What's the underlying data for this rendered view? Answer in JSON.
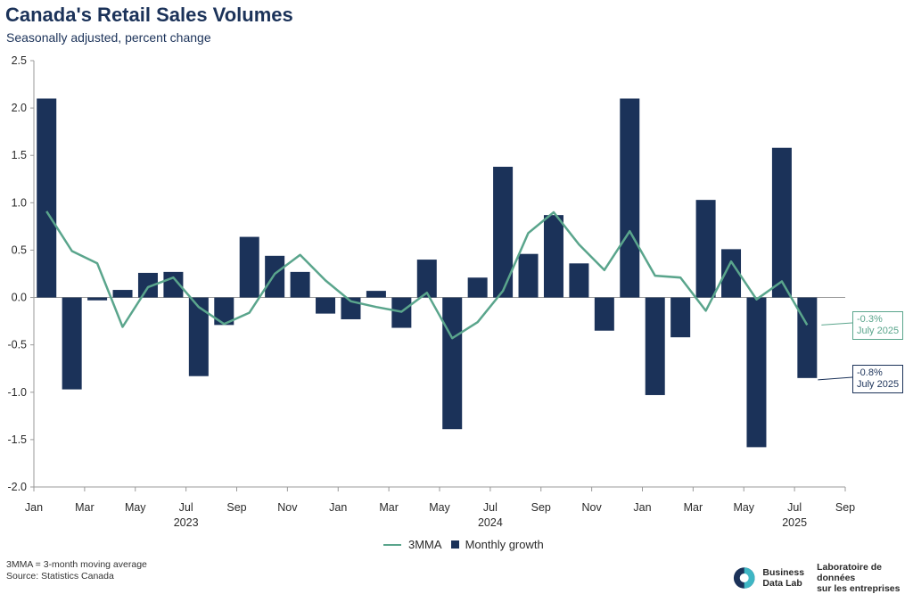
{
  "header": {
    "title": "Canada's Retail Sales Volumes",
    "subtitle": "Seasonally adjusted, percent change"
  },
  "chart_data": {
    "type": "bar",
    "title": "Canada's Retail Sales Volumes",
    "subtitle": "Seasonally adjusted, percent change",
    "x": [
      "2023-01",
      "2023-02",
      "2023-03",
      "2023-04",
      "2023-05",
      "2023-06",
      "2023-07",
      "2023-08",
      "2023-09",
      "2023-10",
      "2023-11",
      "2023-12",
      "2024-01",
      "2024-02",
      "2024-03",
      "2024-04",
      "2024-05",
      "2024-06",
      "2024-07",
      "2024-08",
      "2024-09",
      "2024-10",
      "2024-11",
      "2024-12",
      "2025-01",
      "2025-02",
      "2025-03",
      "2025-04",
      "2025-05",
      "2025-06",
      "2025-07"
    ],
    "series": [
      {
        "name": "Monthly growth",
        "type": "bar",
        "color": "#1b3259",
        "values": [
          2.1,
          -0.97,
          -0.03,
          0.08,
          0.26,
          0.27,
          -0.83,
          -0.29,
          0.64,
          0.44,
          0.27,
          -0.17,
          -0.23,
          0.07,
          -0.32,
          0.4,
          -1.39,
          0.21,
          1.38,
          0.46,
          0.87,
          0.36,
          -0.35,
          2.1,
          -1.03,
          -0.42,
          1.03,
          0.51,
          -1.58,
          1.58,
          -0.85
        ]
      },
      {
        "name": "3MMA",
        "type": "line",
        "color": "#5aa58c",
        "values": [
          0.91,
          0.49,
          0.36,
          -0.31,
          0.11,
          0.21,
          -0.1,
          -0.28,
          -0.16,
          0.25,
          0.45,
          0.18,
          -0.04,
          -0.1,
          -0.15,
          0.05,
          -0.43,
          -0.26,
          0.07,
          0.68,
          0.9,
          0.56,
          0.29,
          0.7,
          0.23,
          0.21,
          -0.14,
          0.38,
          -0.02,
          0.17,
          -0.29
        ]
      }
    ],
    "yticks": [
      "2.5",
      "2.0",
      "1.5",
      "1.0",
      "0.5",
      "0.0",
      "-0.5",
      "-1.0",
      "-1.5",
      "-2.0"
    ],
    "ylim": [
      -2.0,
      2.5
    ],
    "xtick_labels": [
      "Jan",
      "Mar",
      "May",
      "Jul",
      "Sep",
      "Nov",
      "Jan",
      "Mar",
      "May",
      "Jul",
      "Sep",
      "Nov",
      "Jan",
      "Mar",
      "May",
      "Jul",
      "Sep"
    ],
    "year_labels": [
      "2023",
      "2024",
      "2025"
    ],
    "annotations": [
      {
        "value": "-0.3%",
        "date": "July 2025",
        "series": "3MMA"
      },
      {
        "value": "-0.8%",
        "date": "July 2025",
        "series": "Monthly growth"
      }
    ],
    "legend": {
      "placement": "bottom-center",
      "items": [
        "3MMA",
        "Monthly growth"
      ]
    }
  },
  "footer": {
    "note": "3MMA = 3-month moving average",
    "source": "Source: Statistics Canada"
  },
  "brand": {
    "en_line1": "Business",
    "en_line2": "Data Lab",
    "fr_line1": "Laboratoire de données",
    "fr_line2": "sur les entreprises"
  }
}
